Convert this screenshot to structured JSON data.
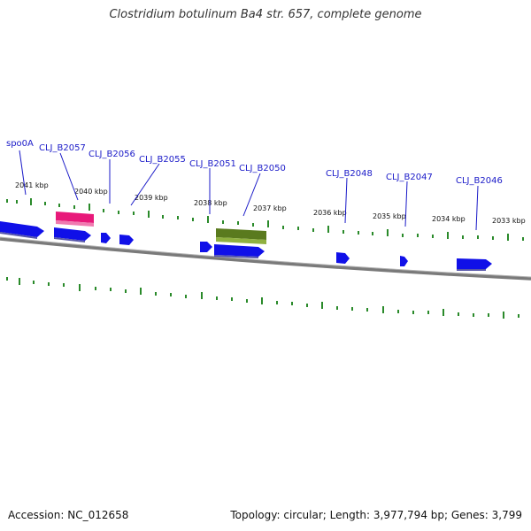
{
  "title": "Clostridium botulinum Ba4 str. 657, complete genome",
  "footer": {
    "accession": "Accession: NC_012658",
    "topology": "Topology: circular; Length: 3,977,794 bp; Genes: 3,799"
  },
  "kbp_labels": [
    "2041 kbp",
    "2040 kbp",
    "2039 kbp",
    "2038 kbp",
    "2037 kbp",
    "2036 kbp",
    "2035 kbp",
    "2034 kbp",
    "2033 kbp"
  ],
  "gene_labels": [
    "spo0A",
    "CLJ_B2057",
    "CLJ_B2056",
    "CLJ_B2055",
    "CLJ_B2051",
    "CLJ_B2050",
    "CLJ_B2048",
    "CLJ_B2047",
    "CLJ_B2046"
  ],
  "colors": {
    "gene_forward": "#1010e8",
    "highlight_pink": "#e8197a",
    "highlight_green": "#6b8e23",
    "tick": "#2a8a2a",
    "backbone": "#7a7a7a",
    "label": "#1a1ac8"
  }
}
